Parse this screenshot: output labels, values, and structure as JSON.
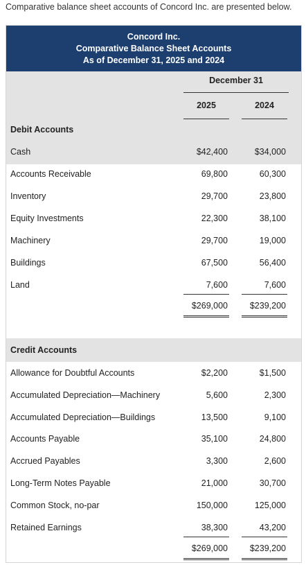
{
  "intro": "Comparative balance sheet accounts of Concord Inc. are presented below.",
  "header": {
    "company": "Concord Inc.",
    "title": "Comparative Balance Sheet Accounts",
    "date": "As of December 31, 2025 and 2024",
    "group_label": "December 31",
    "col1": "2025",
    "col2": "2024"
  },
  "debit": {
    "heading": "Debit Accounts",
    "rows": [
      {
        "label": "Cash",
        "v2025": "$42,400",
        "v2024": "$34,000"
      },
      {
        "label": "Accounts Receivable",
        "v2025": "69,800",
        "v2024": "60,300"
      },
      {
        "label": "Inventory",
        "v2025": "29,700",
        "v2024": "23,800"
      },
      {
        "label": "Equity Investments",
        "v2025": "22,300",
        "v2024": "38,100"
      },
      {
        "label": "Machinery",
        "v2025": "29,700",
        "v2024": "19,000"
      },
      {
        "label": "Buildings",
        "v2025": "67,500",
        "v2024": "56,400"
      },
      {
        "label": "Land",
        "v2025": "7,600",
        "v2024": "7,600"
      }
    ],
    "total_2025": "$269,000",
    "total_2024": "$239,200"
  },
  "credit": {
    "heading": "Credit Accounts",
    "rows": [
      {
        "label": "Allowance for Doubtful Accounts",
        "v2025": "$2,200",
        "v2024": "$1,500"
      },
      {
        "label": "Accumulated Depreciation—Machinery",
        "v2025": "5,600",
        "v2024": "2,300"
      },
      {
        "label": "Accumulated Depreciation—Buildings",
        "v2025": "13,500",
        "v2024": "9,100"
      },
      {
        "label": "Accounts Payable",
        "v2025": "35,100",
        "v2024": "24,800"
      },
      {
        "label": "Accrued Payables",
        "v2025": "3,300",
        "v2024": "2,600"
      },
      {
        "label": "Long-Term Notes Payable",
        "v2025": "21,000",
        "v2024": "30,700"
      },
      {
        "label": "Common Stock, no-par",
        "v2025": "150,000",
        "v2024": "125,000"
      },
      {
        "label": "Retained Earnings",
        "v2025": "38,300",
        "v2024": "43,200"
      }
    ],
    "total_2025": "$269,000",
    "total_2024": "$239,200"
  }
}
